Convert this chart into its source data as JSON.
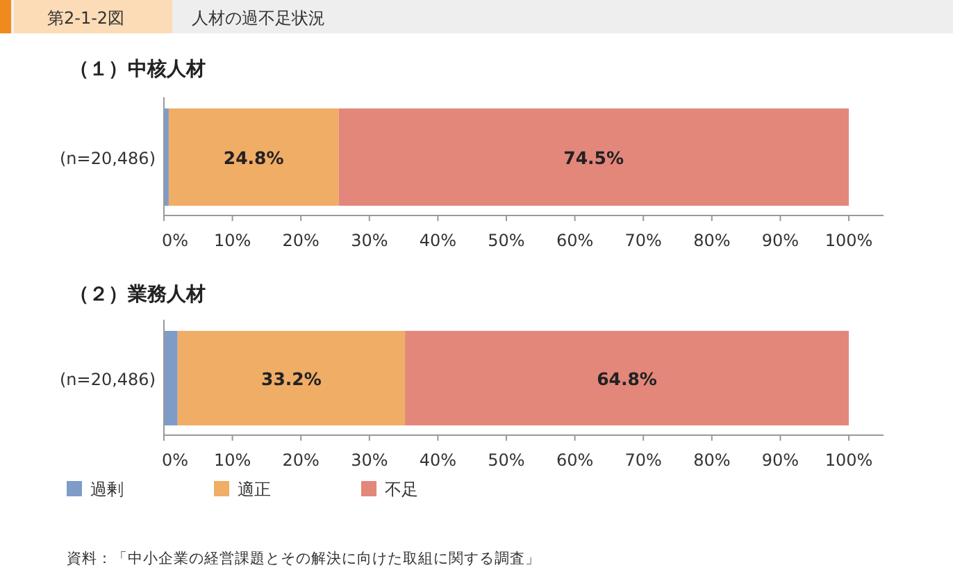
{
  "chart_data": [
    {
      "type": "bar",
      "orientation": "horizontal",
      "stacked": true,
      "title": "（１）中核人材",
      "annotations": [
        "第2-1-2図",
        "人材の過不足状況"
      ],
      "categories": [
        "(n=20,486)"
      ],
      "xlim": [
        0,
        100
      ],
      "xticks": [
        {
          "value": 0,
          "label": "0%"
        },
        {
          "value": 10,
          "label": "10%"
        },
        {
          "value": 20,
          "label": "20%"
        },
        {
          "value": 30,
          "label": "30%"
        },
        {
          "value": 40,
          "label": "40%"
        },
        {
          "value": 50,
          "label": "50%"
        },
        {
          "value": 60,
          "label": "60%"
        },
        {
          "value": 70,
          "label": "70%"
        },
        {
          "value": 80,
          "label": "80%"
        },
        {
          "value": 90,
          "label": "90%"
        },
        {
          "value": 100,
          "label": "100%"
        }
      ],
      "series": [
        {
          "color": "#7f9bc8",
          "values": [
            0.7
          ],
          "value_labels": [
            null
          ]
        },
        {
          "color": "#f0ad66",
          "values": [
            24.8
          ],
          "value_labels": [
            "24.8%"
          ]
        },
        {
          "color": "#e3877b",
          "values": [
            74.5
          ],
          "value_labels": [
            "74.5%"
          ]
        }
      ]
    },
    {
      "type": "bar",
      "orientation": "horizontal",
      "stacked": true,
      "title": "（２）業務人材",
      "annotations": [
        "資料：「中小企業の経営課題とその解決に向けた取組に関する調査」"
      ],
      "categories": [
        "(n=20,486)"
      ],
      "xlim": [
        0,
        100
      ],
      "legend": "bottom",
      "xticks": [
        {
          "value": 0,
          "label": "0%"
        },
        {
          "value": 10,
          "label": "10%"
        },
        {
          "value": 20,
          "label": "20%"
        },
        {
          "value": 30,
          "label": "30%"
        },
        {
          "value": 40,
          "label": "40%"
        },
        {
          "value": 50,
          "label": "50%"
        },
        {
          "value": 60,
          "label": "60%"
        },
        {
          "value": 70,
          "label": "70%"
        },
        {
          "value": 80,
          "label": "80%"
        },
        {
          "value": 90,
          "label": "90%"
        },
        {
          "value": 100,
          "label": "100%"
        }
      ],
      "series": [
        {
          "name": "過剰",
          "color": "#7f9bc8",
          "values": [
            2.0
          ],
          "value_labels": [
            null
          ]
        },
        {
          "name": "適正",
          "color": "#f0ad66",
          "values": [
            33.2
          ],
          "value_labels": [
            "33.2%"
          ]
        },
        {
          "name": "不足",
          "color": "#e3877b",
          "values": [
            64.8
          ],
          "value_labels": [
            "64.8%"
          ]
        }
      ]
    }
  ]
}
